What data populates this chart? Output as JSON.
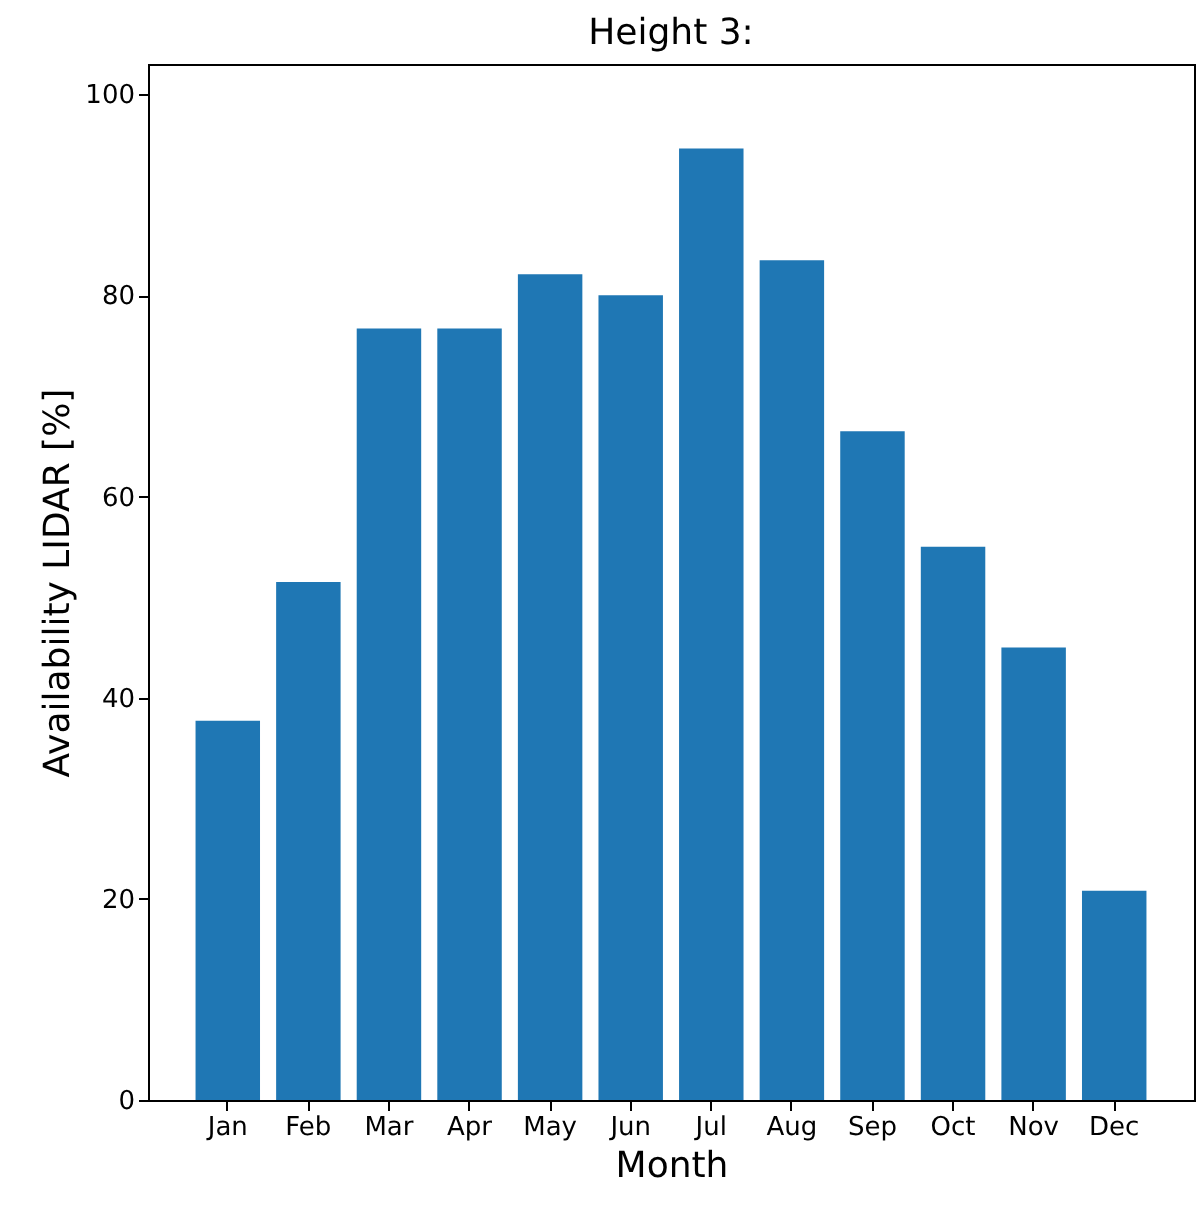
{
  "chart_data": {
    "type": "bar",
    "title": "Height 3:",
    "xlabel": "Month",
    "ylabel": "Availability LIDAR [%]",
    "categories": [
      "Jan",
      "Feb",
      "Mar",
      "Apr",
      "May",
      "Jun",
      "Jul",
      "Aug",
      "Sep",
      "Oct",
      "Nov",
      "Dec"
    ],
    "values": [
      37.7,
      51.5,
      76.7,
      76.7,
      82.1,
      80.0,
      94.6,
      83.5,
      66.5,
      55.0,
      45.0,
      20.8
    ],
    "color": "#1f77b4",
    "ylim": [
      0,
      103
    ],
    "yticks": [
      0,
      20,
      40,
      60,
      80,
      100
    ],
    "grid": false
  }
}
